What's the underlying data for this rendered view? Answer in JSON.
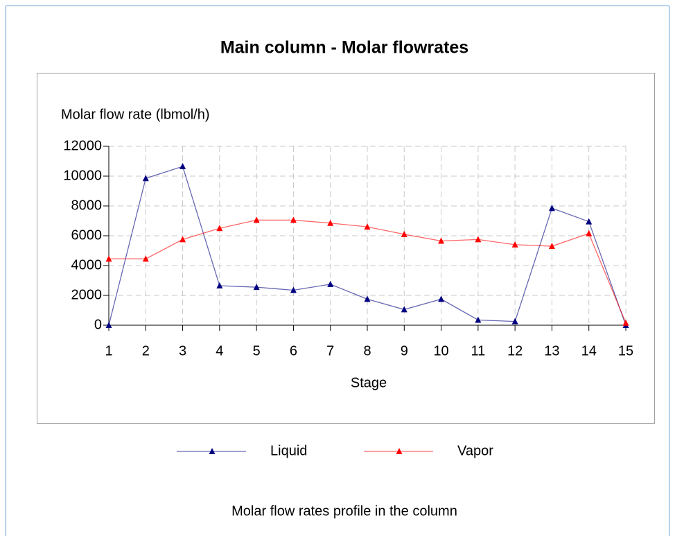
{
  "chart_data": {
    "type": "line",
    "title": "Main column - Molar flowrates",
    "y_label": "Molar flow rate (lbmol/h)",
    "x_label": "Stage",
    "caption": "Molar flow rates profile in the column",
    "x": [
      1,
      2,
      3,
      4,
      5,
      6,
      7,
      8,
      9,
      10,
      11,
      12,
      13,
      14,
      15
    ],
    "series": [
      {
        "name": "Liquid",
        "color": "#000080",
        "values": [
          0,
          9850,
          10650,
          2650,
          2550,
          2350,
          2750,
          1750,
          1050,
          1750,
          350,
          250,
          7850,
          6950,
          0
        ]
      },
      {
        "name": "Vapor",
        "color": "#ff0000",
        "values": [
          4450,
          4450,
          5750,
          6500,
          7050,
          7050,
          6850,
          6600,
          6100,
          5650,
          5750,
          5400,
          5300,
          6150,
          150
        ]
      }
    ],
    "xlim": [
      1,
      15
    ],
    "xticks": [
      1,
      2,
      3,
      4,
      5,
      6,
      7,
      8,
      9,
      10,
      11,
      12,
      13,
      14,
      15
    ],
    "ylim": [
      0,
      12000
    ],
    "yticks": [
      0,
      2000,
      4000,
      6000,
      8000,
      10000,
      12000
    ],
    "grid": true
  }
}
